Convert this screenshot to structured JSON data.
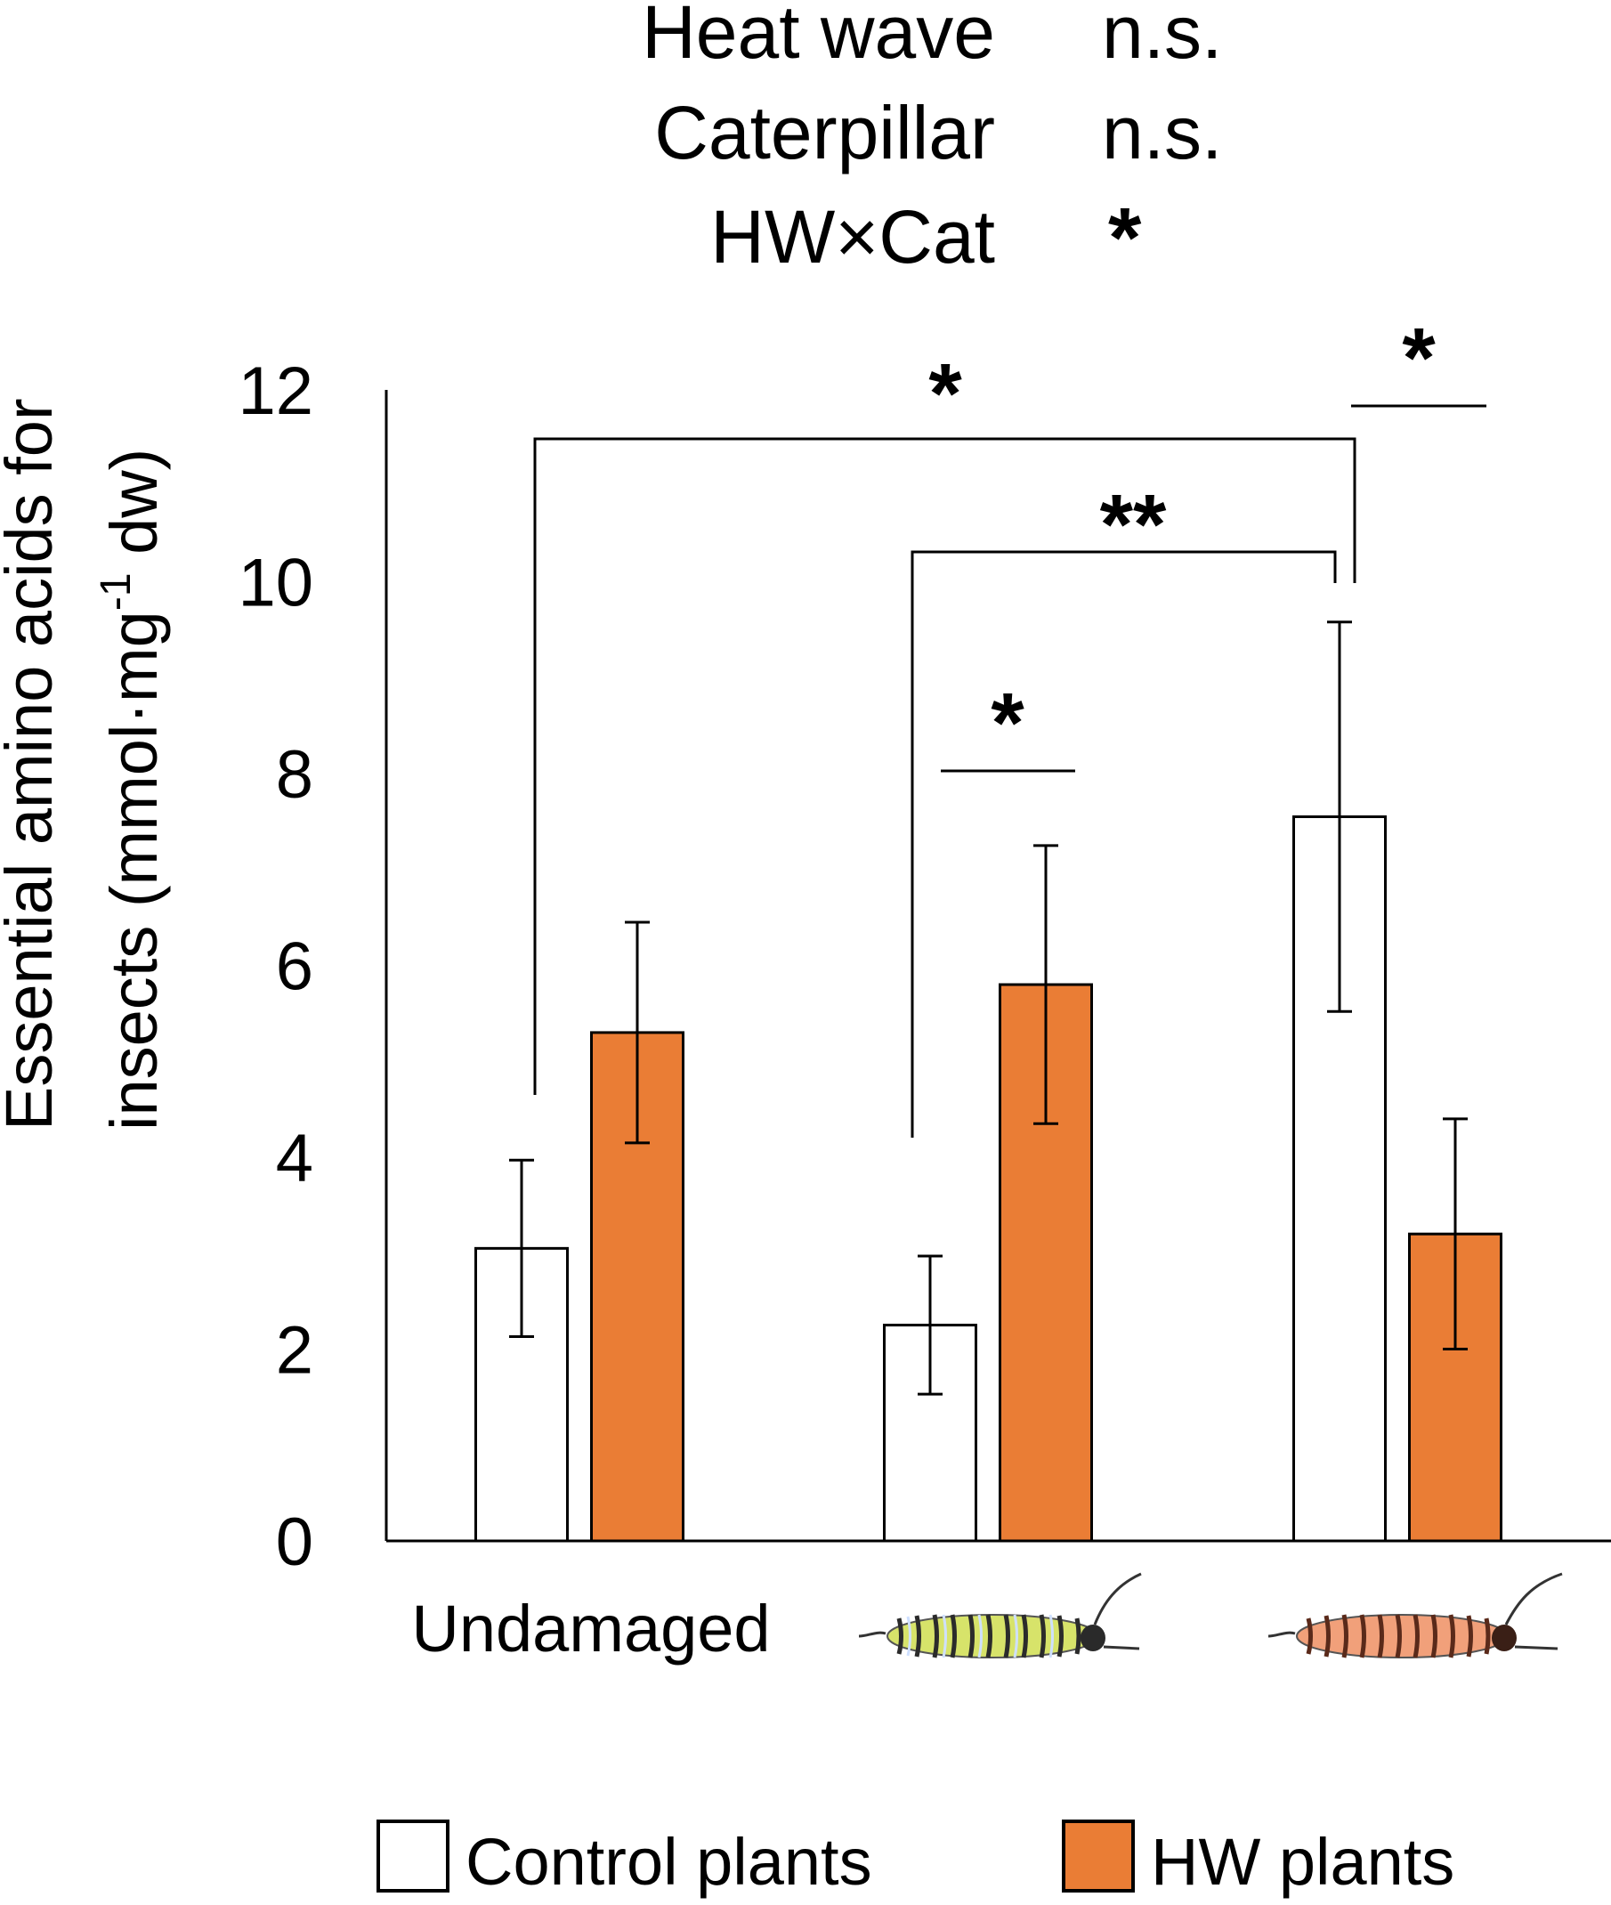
{
  "stats": [
    {
      "factor": "Heat wave",
      "result": "n.s."
    },
    {
      "factor": "Caterpillar",
      "result": "n.s."
    },
    {
      "factor": "HW×Cat",
      "result": "*"
    }
  ],
  "chart_data": {
    "type": "bar",
    "ylabel_line1": "Essential amino acids for",
    "ylabel_line2_prefix": "insects (mmol·mg",
    "ylabel_superscript": "-1",
    "ylabel_line2_suffix": " dw)",
    "ylim": [
      0,
      12
    ],
    "yticks": [
      "0",
      "2",
      "4",
      "6",
      "8",
      "10",
      "12"
    ],
    "categories": [
      "Undamaged",
      "caterpillar-green-icon",
      "caterpillar-orange-icon"
    ],
    "category_label": "Undamaged",
    "series": [
      {
        "name": "Control plants",
        "color": "#ffffff",
        "values": [
          3.05,
          2.25,
          7.55
        ],
        "error": [
          0.92,
          0.72,
          2.03
        ]
      },
      {
        "name": "HW plants",
        "color": "#ea7d35",
        "values": [
          5.3,
          5.8,
          3.2
        ],
        "error": [
          1.15,
          1.45,
          1.2
        ]
      }
    ],
    "significance": [
      {
        "label": "*",
        "type": "bracket",
        "from": "Undamaged / Control plants",
        "to": "orange caterpillar / Control plants"
      },
      {
        "label": "**",
        "type": "bracket",
        "from": "green caterpillar / Control plants",
        "to": "orange caterpillar / Control plants"
      },
      {
        "label": "*",
        "type": "line",
        "between": "green caterpillar / Control plants vs HW plants"
      },
      {
        "label": "*",
        "type": "line",
        "between": "orange caterpillar / Control plants vs HW plants"
      }
    ],
    "legend": [
      {
        "label": "Control plants",
        "color": "#ffffff"
      },
      {
        "label": "HW plants",
        "color": "#ea7d35"
      }
    ],
    "legend_position": "bottom",
    "grid": false
  }
}
